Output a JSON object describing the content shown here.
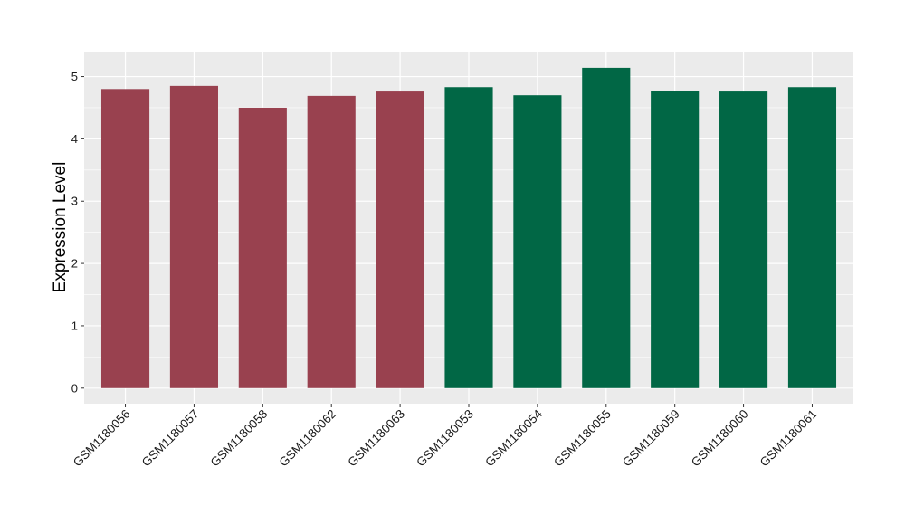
{
  "chart_data": {
    "type": "bar",
    "ylabel": "Expression Level",
    "xlabel": "",
    "title": "",
    "ylim": [
      -0.25,
      5.4
    ],
    "yticks": [
      0,
      1,
      2,
      3,
      4,
      5
    ],
    "grid": true,
    "colors": {
      "group1": "#99414f",
      "group2": "#016745",
      "panel": "#ebebeb",
      "grid": "#ffffff"
    },
    "categories": [
      "GSM1180056",
      "GSM1180057",
      "GSM1180058",
      "GSM1180062",
      "GSM1180063",
      "GSM1180053",
      "GSM1180054",
      "GSM1180055",
      "GSM1180059",
      "GSM1180060",
      "GSM1180061"
    ],
    "values": [
      4.8,
      4.85,
      4.5,
      4.69,
      4.76,
      4.83,
      4.7,
      5.14,
      4.77,
      4.76,
      4.83
    ],
    "groups": [
      "group1",
      "group1",
      "group1",
      "group1",
      "group1",
      "group2",
      "group2",
      "group2",
      "group2",
      "group2",
      "group2"
    ]
  }
}
